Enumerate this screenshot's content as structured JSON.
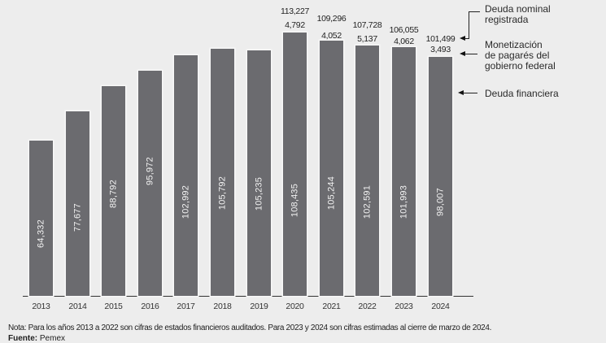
{
  "chart_data": {
    "type": "bar",
    "stacked": true,
    "title": "",
    "xlabel": "",
    "ylabel": "",
    "categories": [
      "2013",
      "2014",
      "2015",
      "2016",
      "2017",
      "2018",
      "2019",
      "2020",
      "2021",
      "2022",
      "2023",
      "2024"
    ],
    "series": [
      {
        "name": "Deuda financiera",
        "values": [
          64332,
          77677,
          88792,
          95972,
          102992,
          105792,
          105235,
          108435,
          105244,
          102591,
          101993,
          98007
        ]
      },
      {
        "name": "Monetización de pagarés del gobierno federal",
        "values": [
          null,
          null,
          null,
          null,
          null,
          null,
          null,
          4792,
          4052,
          5137,
          4062,
          3493
        ]
      }
    ],
    "totals": {
      "label": "Deuda nominal registrada",
      "values": [
        null,
        null,
        null,
        null,
        null,
        null,
        null,
        113227,
        109296,
        107728,
        106055,
        101499
      ]
    },
    "legend": [
      "Deuda nominal registrada",
      "Monetización de pagarés del gobierno federal",
      "Deuda financiera"
    ],
    "legend_position": "right",
    "grid": false,
    "colors": {
      "bar": "#6b6b6f",
      "background": "#ededed",
      "text": "#2a2a2a"
    }
  },
  "labels": {
    "values_in": [
      "64,332",
      "77,677",
      "88,792",
      "95,972",
      "102,992",
      "105,792",
      "105,235",
      "108,435",
      "105,244",
      "102,591",
      "101,993",
      "98,007"
    ],
    "values_mid": [
      "",
      "",
      "",
      "",
      "",
      "",
      "",
      "4,792",
      "4,052",
      "5,137",
      "4,062",
      "3,493"
    ],
    "values_total": [
      "",
      "",
      "",
      "",
      "",
      "",
      "",
      "113,227",
      "109,296",
      "107,728",
      "106,055",
      "101,499"
    ],
    "years": [
      "2013",
      "2014",
      "2015",
      "2016",
      "2017",
      "2018",
      "2019",
      "2020",
      "2021",
      "2022",
      "2023",
      "2024"
    ]
  },
  "legend": {
    "total_line1": "Deuda nominal",
    "total_line2": "registrada",
    "monet_line1": "Monetización",
    "monet_line2": "de pagarés del",
    "monet_line3": "gobierno federal",
    "financiera": "Deuda financiera"
  },
  "footer": {
    "note": "Nota: Para los años 2013 a 2022 son cifras de estados financieros auditados. Para 2023 y 2024 son cifras estimadas al cierre de marzo de 2024.",
    "source_label": "Fuente:",
    "source_value": " Pemex"
  }
}
